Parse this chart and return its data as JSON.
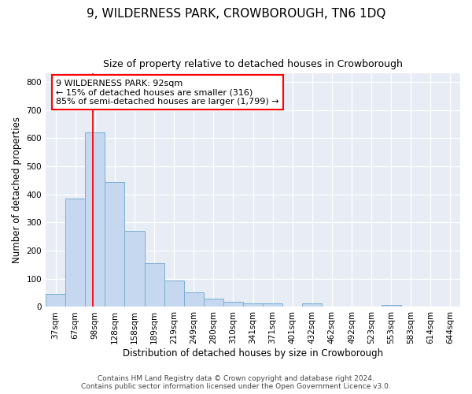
{
  "title1": "9, WILDERNESS PARK, CROWBOROUGH, TN6 1DQ",
  "title2": "Size of property relative to detached houses in Crowborough",
  "xlabel": "Distribution of detached houses by size in Crowborough",
  "ylabel": "Number of detached properties",
  "categories": [
    "37sqm",
    "67sqm",
    "98sqm",
    "128sqm",
    "158sqm",
    "189sqm",
    "219sqm",
    "249sqm",
    "280sqm",
    "310sqm",
    "341sqm",
    "371sqm",
    "401sqm",
    "432sqm",
    "462sqm",
    "492sqm",
    "523sqm",
    "553sqm",
    "583sqm",
    "614sqm",
    "644sqm"
  ],
  "values": [
    45,
    385,
    620,
    445,
    270,
    155,
    95,
    52,
    30,
    18,
    12,
    12,
    0,
    12,
    0,
    0,
    0,
    8,
    0,
    0,
    0
  ],
  "bar_color": "#c5d8ef",
  "bar_edge_color": "#7aafd4",
  "red_line_x": 1.87,
  "annotation_line1": "9 WILDERNESS PARK: 92sqm",
  "annotation_line2": "← 15% of detached houses are smaller (316)",
  "annotation_line3": "85% of semi-detached houses are larger (1,799) →",
  "ylim": [
    0,
    830
  ],
  "yticks": [
    0,
    100,
    200,
    300,
    400,
    500,
    600,
    700,
    800
  ],
  "bg_color": "#e8edf5",
  "grid_color": "#ffffff",
  "footer1": "Contains HM Land Registry data © Crown copyright and database right 2024.",
  "footer2": "Contains public sector information licensed under the Open Government Licence v3.0.",
  "title1_fontsize": 11,
  "title2_fontsize": 9,
  "ylabel_fontsize": 8.5,
  "xlabel_fontsize": 8.5,
  "tick_fontsize": 7.5,
  "annot_fontsize": 8,
  "footer_fontsize": 6.5
}
